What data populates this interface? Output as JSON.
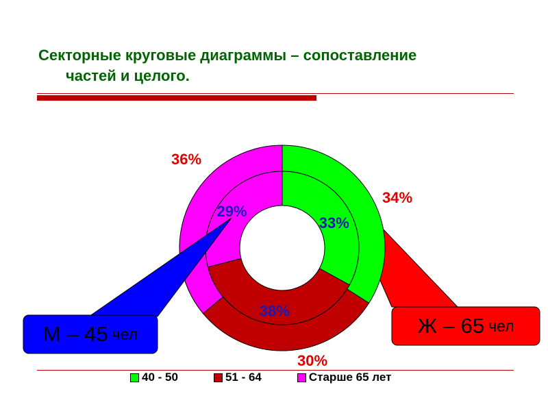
{
  "slide": {
    "title_line1": "Секторные круговые диаграммы – сопоставление",
    "title_line2": "частей и целого."
  },
  "colors": {
    "title": "#006400",
    "rule": "#c00000",
    "series_40_50": "#00ff00",
    "series_51_64": "#c00000",
    "series_65plus": "#ff00ff",
    "outer_label": "#e00000",
    "inner_label": "#1a1ab4",
    "callout_m": "#0000ff",
    "callout_w": "#ff0000"
  },
  "chart_data": {
    "type": "pie",
    "subtype": "doughnut",
    "categories": [
      "40 - 50",
      "51 - 64",
      "Старше 65 лет"
    ],
    "rings": [
      {
        "ring": "inner",
        "values": [
          33,
          38,
          29
        ],
        "labels": [
          "33%",
          "38%",
          "29%"
        ]
      },
      {
        "ring": "outer",
        "values": [
          34,
          30,
          36
        ],
        "labels": [
          "34%",
          "30%",
          "36%"
        ]
      }
    ],
    "legend": {
      "placement": "bottom",
      "entries": [
        "40 - 50",
        "51 - 64",
        "Старше 65 лет"
      ]
    }
  },
  "callouts": {
    "m": {
      "main": "М – 45",
      "unit": "чел"
    },
    "w": {
      "main": "Ж – 65",
      "unit": "чел"
    }
  }
}
